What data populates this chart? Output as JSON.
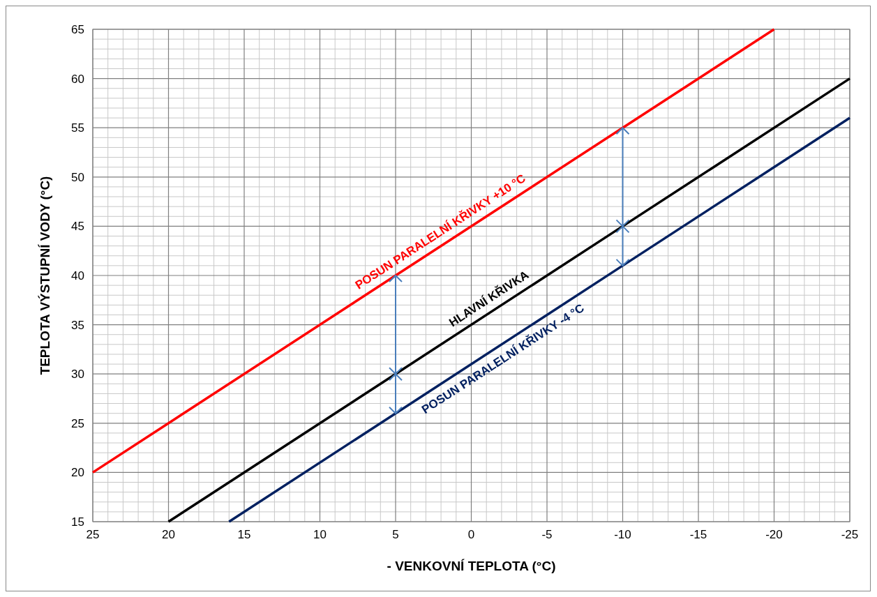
{
  "chart_data": {
    "type": "line",
    "xlabel": "- VENKOVNÍ TEPLOTA (°C)",
    "ylabel": "TEPLOTA VÝSTUPNÍ VODY (°C)",
    "xlim": [
      25,
      -25
    ],
    "xticks": [
      25,
      20,
      15,
      10,
      5,
      0,
      -5,
      -10,
      -15,
      -20,
      -25
    ],
    "ylim": [
      15,
      65
    ],
    "yticks": [
      15,
      20,
      25,
      30,
      35,
      40,
      45,
      50,
      55,
      60,
      65
    ],
    "grid": true,
    "marker": "none",
    "line_style": "solid",
    "series": [
      {
        "name": "POSUN PARALELNÍ KŘIVKY +10 °C",
        "color": "#ff0000",
        "x": [
          25,
          5,
          -10,
          -20
        ],
        "values": [
          20,
          40,
          55,
          65
        ]
      },
      {
        "name": "HLAVNÍ KŘIVKA",
        "color": "#000000",
        "x": [
          20,
          5,
          -10,
          -25
        ],
        "values": [
          15,
          30,
          45,
          60
        ]
      },
      {
        "name": "POSUN PARALELNÍ KŘIVKY -4 °C",
        "color": "#002060",
        "x": [
          16,
          5,
          -10,
          -25
        ],
        "values": [
          15,
          26,
          41,
          56
        ]
      }
    ]
  }
}
